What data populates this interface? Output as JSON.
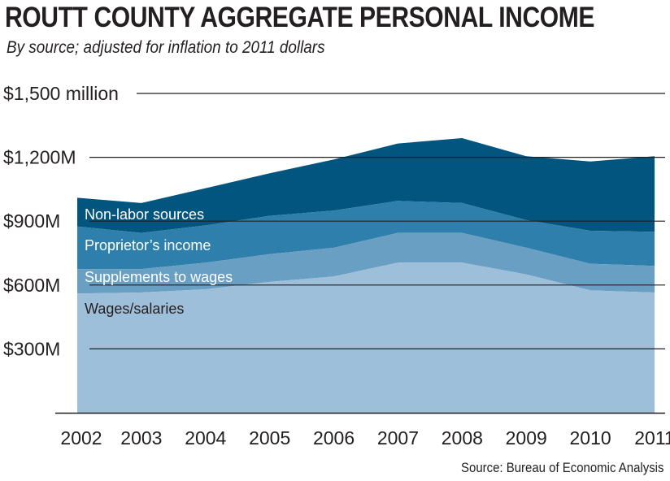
{
  "header": {
    "title": "ROUTT COUNTY AGGREGATE PERSONAL INCOME",
    "subtitle": "By source; adjusted for inflation to 2011 dollars"
  },
  "footer": {
    "source": "Source: Bureau of Economic Analysis"
  },
  "chart_data": {
    "type": "area",
    "stacked": true,
    "title": "ROUTT COUNTY AGGREGATE PERSONAL INCOME",
    "subtitle": "By source; adjusted for inflation to 2011 dollars",
    "xlabel": "",
    "ylabel": "",
    "x": [
      "2002",
      "2003",
      "2004",
      "2005",
      "2006",
      "2007",
      "2008",
      "2009",
      "2010",
      "2011"
    ],
    "y_ticks": [
      {
        "value": 300,
        "label": "$300M"
      },
      {
        "value": 600,
        "label": "$600M"
      },
      {
        "value": 900,
        "label": "$900M"
      },
      {
        "value": 1200,
        "label": "$1,200M"
      },
      {
        "value": 1500,
        "label": "$1,500 million"
      }
    ],
    "ylim": [
      0,
      1500
    ],
    "grid": "horizontal",
    "series": [
      {
        "name": "Wages/salaries",
        "color": "#9dbfda",
        "label_color": "#231f20",
        "values": [
          560,
          565,
          580,
          615,
          640,
          705,
          705,
          650,
          575,
          565
        ]
      },
      {
        "name": "Supplements to wages",
        "color": "#6a9fc4",
        "label_color": "#ffffff",
        "values": [
          115,
          110,
          125,
          130,
          135,
          140,
          140,
          125,
          125,
          125
        ]
      },
      {
        "name": "Proprietor’s income",
        "color": "#2e7fab",
        "label_color": "#ffffff",
        "values": [
          200,
          170,
          175,
          180,
          175,
          150,
          140,
          130,
          155,
          160
        ]
      },
      {
        "name": "Non-labor sources",
        "color": "#02557f",
        "label_color": "#ffffff",
        "values": [
          135,
          140,
          175,
          200,
          240,
          270,
          305,
          300,
          325,
          355
        ]
      }
    ]
  }
}
